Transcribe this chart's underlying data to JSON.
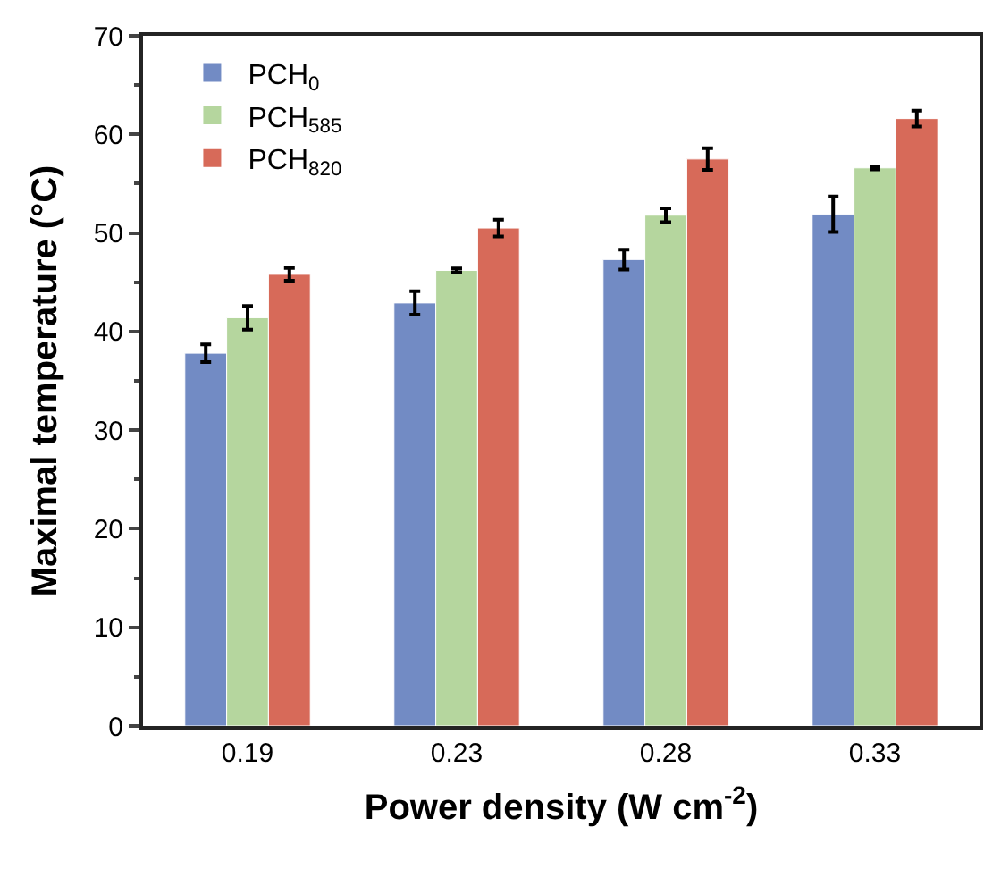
{
  "chart_data": {
    "type": "bar",
    "xlabel": "Power density (W cm$^{-2}$)",
    "ylabel": "Maximal temperature (°C)",
    "categories": [
      "0.19",
      "0.23",
      "0.28",
      "0.33"
    ],
    "series": [
      {
        "name": "PCH$_{0}$",
        "color": "#728bc4",
        "values": [
          37.8,
          42.9,
          47.3,
          51.9
        ],
        "errors": [
          0.9,
          1.2,
          1.0,
          1.8
        ]
      },
      {
        "name": "PCH$_{585}$",
        "color": "#b5d69e",
        "values": [
          41.4,
          46.2,
          51.8,
          56.6
        ],
        "errors": [
          1.2,
          0.2,
          0.7,
          0.15
        ]
      },
      {
        "name": "PCH$_{820}$",
        "color": "#d76a59",
        "values": [
          45.8,
          50.5,
          57.5,
          61.6
        ],
        "errors": [
          0.65,
          0.85,
          1.1,
          0.8
        ]
      }
    ],
    "ylim": [
      0,
      70
    ],
    "yticks": [
      0,
      10,
      20,
      30,
      40,
      50,
      60,
      70
    ],
    "grid": false,
    "legend": "top left"
  }
}
